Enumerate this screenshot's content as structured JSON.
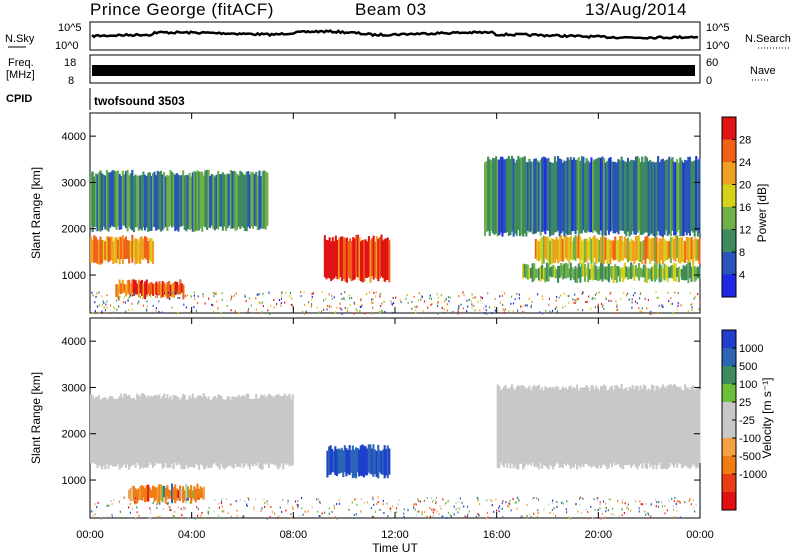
{
  "header": {
    "title": "Prince George (fitACF)",
    "beam": "Beam 03",
    "date": "13/Aug/2014"
  },
  "strips": {
    "nsky_label": "N.Sky",
    "nsearch_label": "N.Search",
    "freq_label_1": "Freq.",
    "freq_label_2": "[MHz]",
    "nave_label": "Nave",
    "cpid_label": "CPID",
    "cpid_value": "twofsound 3503",
    "noise_ticks": [
      "10^5",
      "10^0"
    ],
    "freq_left_ticks": [
      "18",
      "8"
    ],
    "freq_right_ticks": [
      "60",
      "0"
    ]
  },
  "colors": {
    "power_scale": [
      "#1f28e6",
      "#2a55b8",
      "#3c8a5e",
      "#6fb04a",
      "#d6d21a",
      "#f0a020",
      "#f06018",
      "#e01414"
    ],
    "velocity_scale": [
      "#1f3fcc",
      "#2b66b6",
      "#3c8a5e",
      "#6cbf3a",
      "#c8c8c8",
      "#c8c8c8",
      "#f2a040",
      "#f07c14",
      "#e83c14",
      "#e01010"
    ]
  },
  "chart_data": [
    {
      "type": "heatmap",
      "name": "power",
      "xlabel": "",
      "ylabel": "Slant Range [km]",
      "ylim": [
        180,
        4500
      ],
      "yticks": [
        "1000",
        "2000",
        "3000",
        "4000"
      ],
      "colorbar_label": "Power [dB]",
      "colorbar_ticks": [
        "4",
        "8",
        "12",
        "16",
        "20",
        "24",
        "28"
      ],
      "colorbar_range": [
        0,
        32
      ],
      "regions": [
        {
          "t0": 0.0,
          "t1": 2.5,
          "r0": 1300,
          "r1": 1800,
          "v": 22
        },
        {
          "t0": 1.0,
          "t1": 3.7,
          "r0": 550,
          "r1": 850,
          "v": 26
        },
        {
          "t0": 9.2,
          "t1": 11.8,
          "r0": 900,
          "r1": 1800,
          "v": 28
        },
        {
          "t0": 17.5,
          "t1": 24.0,
          "r0": 1300,
          "r1": 1800,
          "v": 20
        },
        {
          "t0": 17.0,
          "t1": 24.0,
          "r0": 900,
          "r1": 1200,
          "v": 13
        },
        {
          "t0": 0.0,
          "t1": 7.0,
          "r0": 2000,
          "r1": 3200,
          "v": 10
        },
        {
          "t0": 15.5,
          "t1": 24.0,
          "r0": 1900,
          "r1": 3500,
          "v": 8
        }
      ]
    },
    {
      "type": "heatmap",
      "name": "velocity",
      "xlabel": "Time UT",
      "ylabel": "Slant Range [km]",
      "ylim": [
        180,
        4500
      ],
      "yticks": [
        "1000",
        "2000",
        "3000",
        "4000"
      ],
      "xticks": [
        "00:00",
        "04:00",
        "08:00",
        "12:00",
        "16:00",
        "20:00",
        "00:00"
      ],
      "xlim": [
        0,
        24
      ],
      "colorbar_label": "Velocity [m s⁻¹]",
      "colorbar_ticks": [
        "1000",
        "500",
        "100",
        "25",
        "-25",
        "-100",
        "-500",
        "-1000"
      ],
      "regions": [
        {
          "t0": 9.3,
          "t1": 11.8,
          "r0": 1100,
          "r1": 1700,
          "v": 500
        },
        {
          "t0": 1.5,
          "t1": 4.5,
          "r0": 550,
          "r1": 850,
          "v": -200
        },
        {
          "t0": 0.0,
          "t1": 8.0,
          "r0": 1300,
          "r1": 2800,
          "v": 0
        },
        {
          "t0": 16.0,
          "t1": 24.0,
          "r0": 1300,
          "r1": 3000,
          "v": 0
        }
      ]
    }
  ]
}
